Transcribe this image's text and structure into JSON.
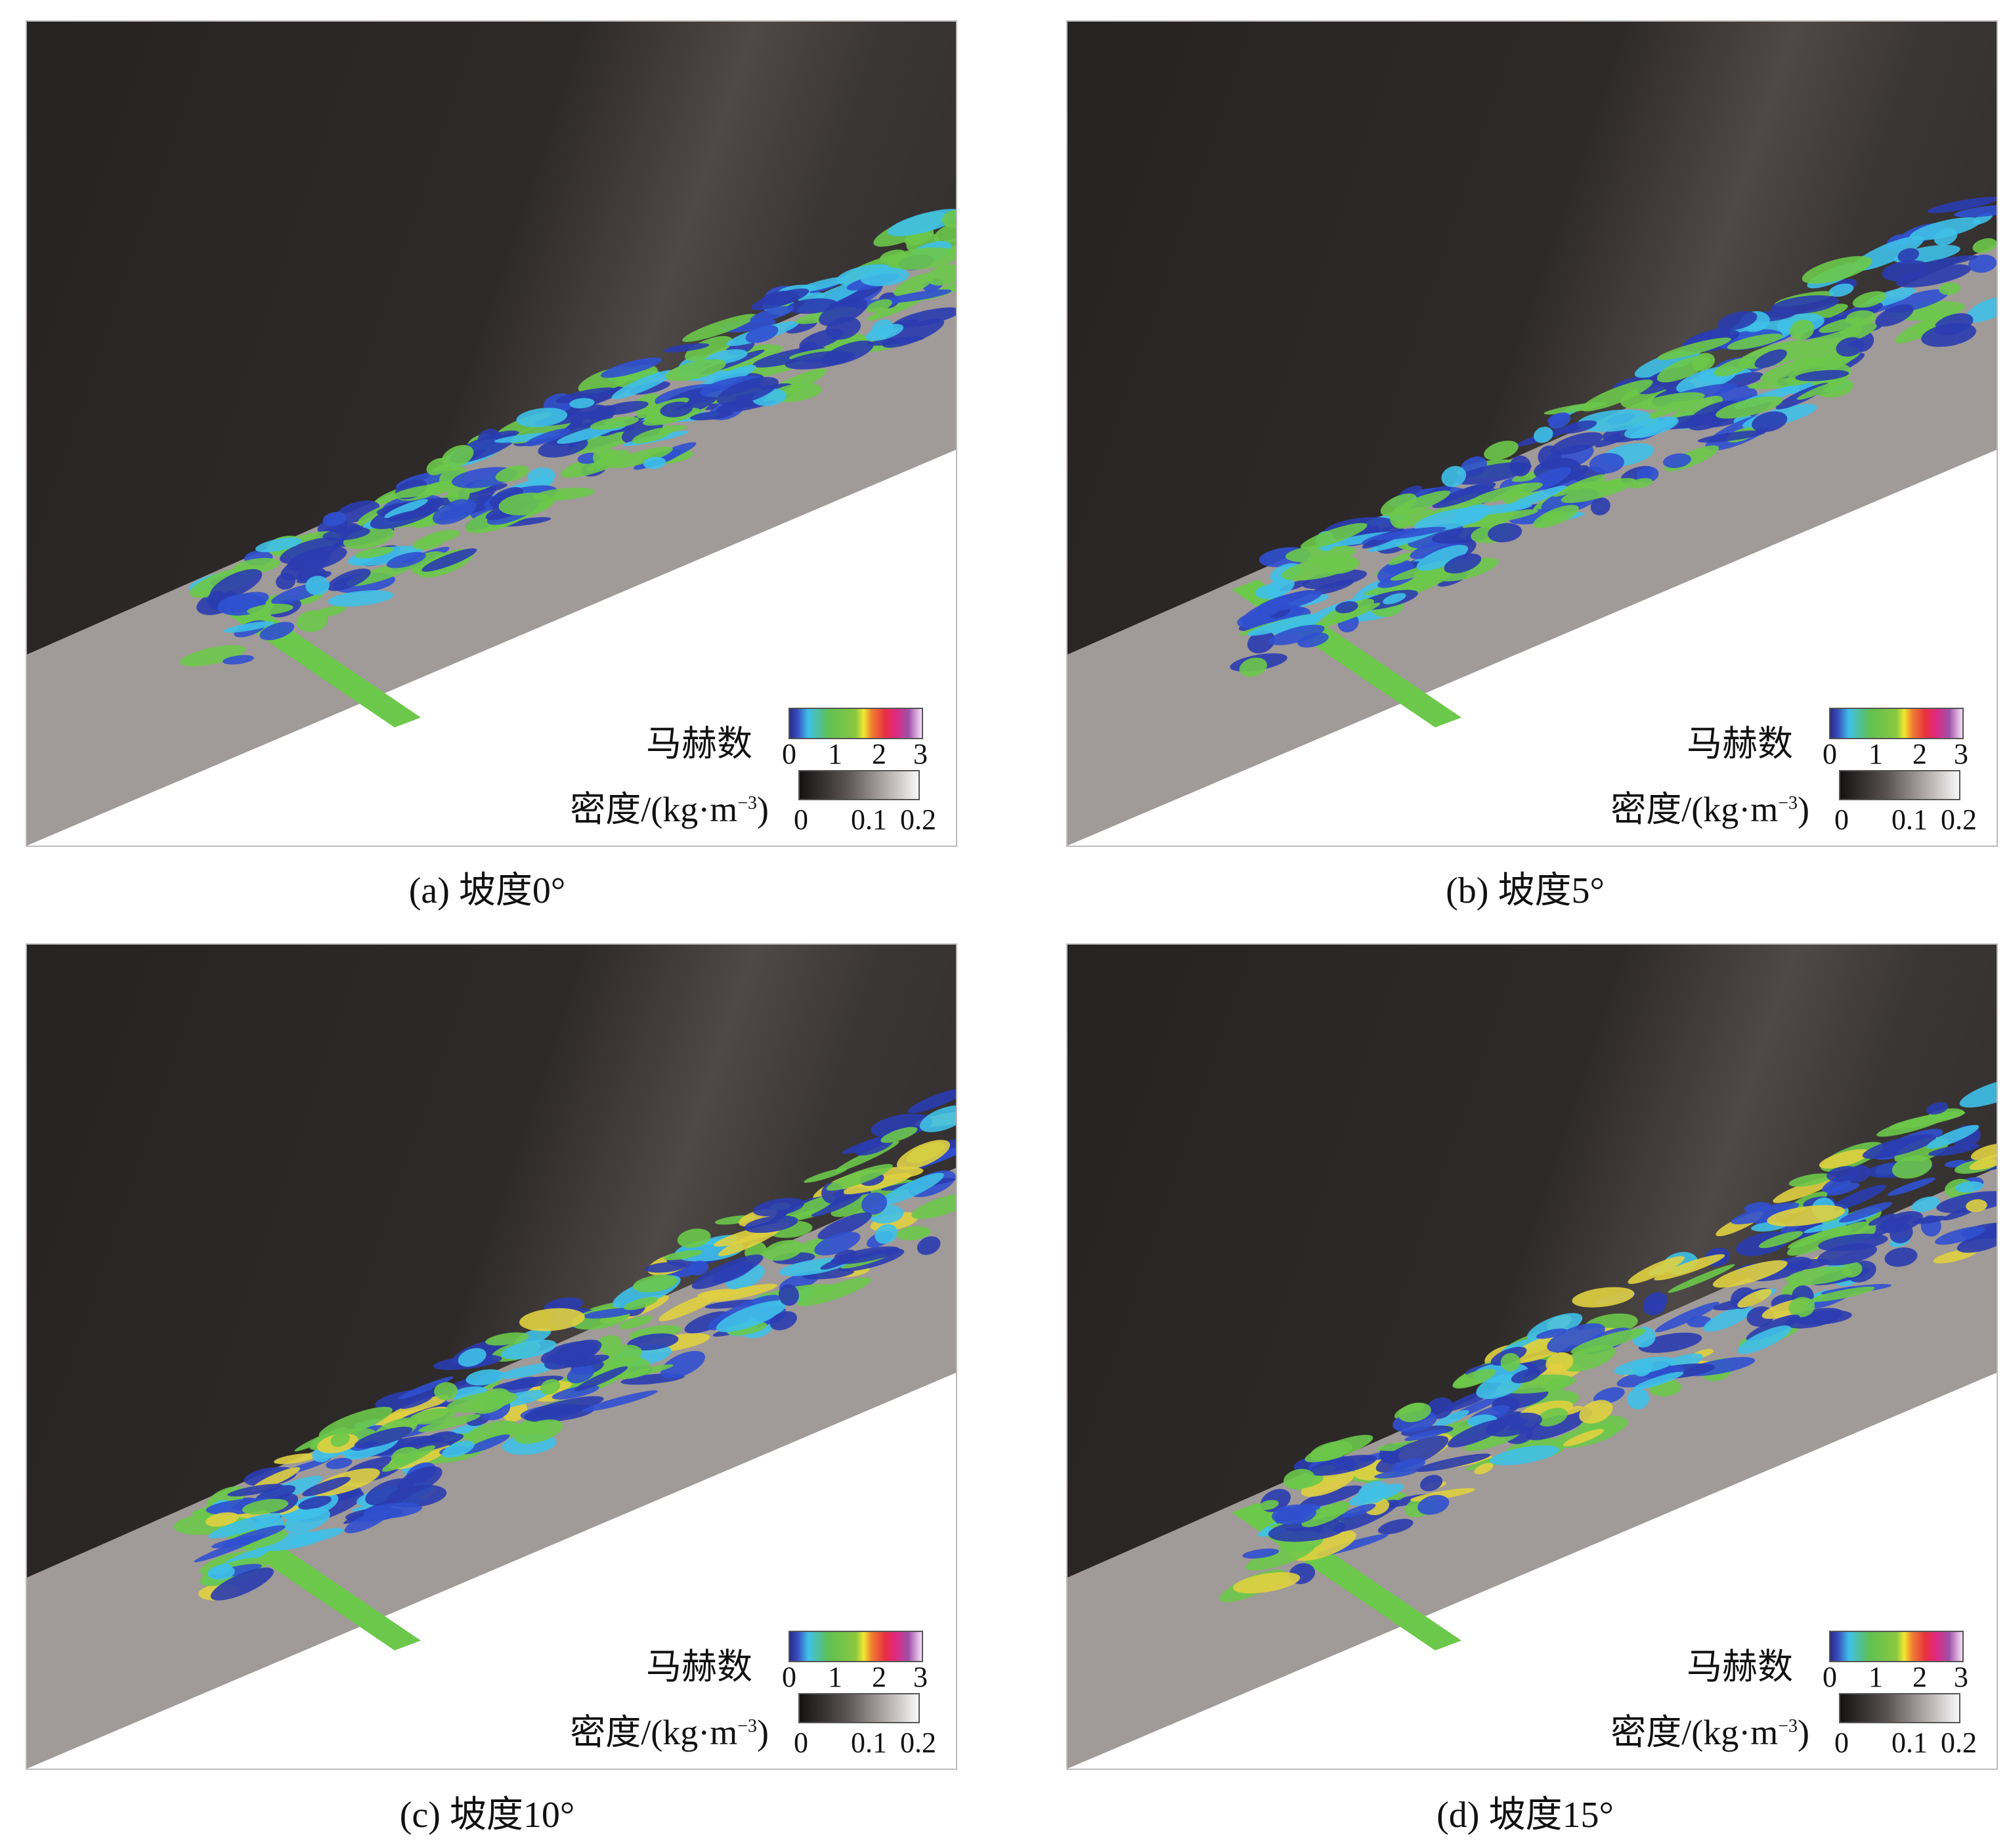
{
  "legend": {
    "mach_label": "马赫数",
    "mach_ticks": [
      "0",
      "1",
      "2",
      "3"
    ],
    "density_label_main": "密度/(kg·m",
    "density_label_exp": "−3",
    "density_label_close": ")",
    "density_ticks": [
      "0",
      "0.1",
      "0.2"
    ]
  },
  "colors": {
    "background": "#3a3634",
    "surface": "#a09a98",
    "blue": "#2a3cb0",
    "cyan": "#3fc0e8",
    "green": "#6cc84a",
    "yellow": "#e0d040"
  },
  "panels": [
    {
      "caption": "(a) 坡度0°",
      "slope_deg": 0
    },
    {
      "caption": "(b) 坡度5°",
      "slope_deg": 5
    },
    {
      "caption": "(c) 坡度10°",
      "slope_deg": 10
    },
    {
      "caption": "(d) 坡度15°",
      "slope_deg": 15
    }
  ]
}
